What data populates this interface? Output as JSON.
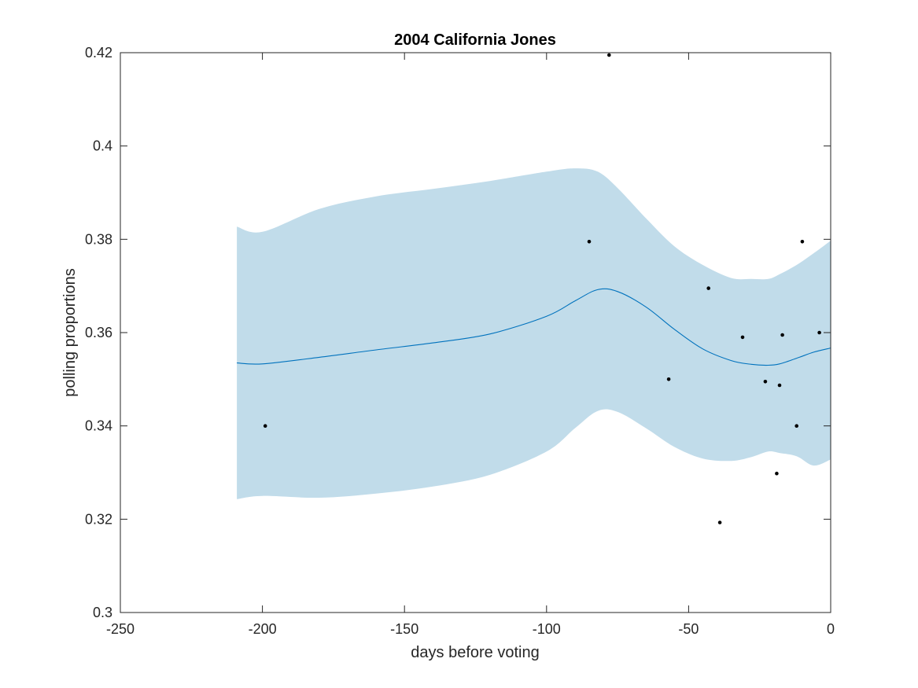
{
  "chart_data": {
    "type": "scatter",
    "title": "2004 California Jones",
    "xlabel": "days before voting",
    "ylabel": "polling proportions",
    "xlim": [
      -250,
      0
    ],
    "ylim": [
      0.3,
      0.42
    ],
    "xticks": [
      -250,
      -200,
      -150,
      -100,
      -50,
      0
    ],
    "yticks": [
      0.3,
      0.32,
      0.34,
      0.36,
      0.38,
      0.4,
      0.42
    ],
    "xtick_labels": [
      "-250",
      "-200",
      "-150",
      "-100",
      "-50",
      "0"
    ],
    "ytick_labels": [
      "0.3",
      "0.32",
      "0.34",
      "0.36",
      "0.38",
      "0.4",
      "0.42"
    ],
    "grid": false,
    "colors": {
      "band": "#c1dcea",
      "mean": "#0072bd",
      "points": "#000000",
      "axes": "#262626"
    },
    "series": [
      {
        "kind": "mean_line",
        "x": [
          -209,
          -200,
          -180,
          -160,
          -140,
          -120,
          -100,
          -90,
          -82,
          -75,
          -65,
          -55,
          -45,
          -35,
          -28,
          -22,
          -18,
          -12,
          -6,
          0
        ],
        "y": [
          0.3535,
          0.3533,
          0.3547,
          0.3563,
          0.3578,
          0.3597,
          0.3635,
          0.3668,
          0.3692,
          0.3688,
          0.3655,
          0.3607,
          0.3565,
          0.354,
          0.3532,
          0.353,
          0.3533,
          0.3545,
          0.3558,
          0.3567
        ]
      },
      {
        "kind": "confidence_band",
        "x": [
          -209,
          -200,
          -180,
          -160,
          -140,
          -120,
          -100,
          -90,
          -82,
          -75,
          -65,
          -55,
          -45,
          -35,
          -28,
          -22,
          -18,
          -12,
          -6,
          0
        ],
        "upper": [
          0.3827,
          0.3816,
          0.3865,
          0.3892,
          0.3908,
          0.3925,
          0.3945,
          0.3952,
          0.3945,
          0.391,
          0.3845,
          0.3785,
          0.3745,
          0.3717,
          0.3715,
          0.3715,
          0.3725,
          0.3745,
          0.377,
          0.3797
        ],
        "lower": [
          0.3243,
          0.325,
          0.3246,
          0.3255,
          0.327,
          0.3295,
          0.3345,
          0.3395,
          0.3432,
          0.343,
          0.3395,
          0.3355,
          0.333,
          0.3325,
          0.3333,
          0.3345,
          0.3342,
          0.3335,
          0.3315,
          0.3328
        ]
      },
      {
        "kind": "points",
        "x": [
          -199,
          -85,
          -78,
          -57,
          -43,
          -39,
          -31,
          -23,
          -19,
          -18,
          -17,
          -12,
          -10,
          -4
        ],
        "y": [
          0.34,
          0.3795,
          0.4195,
          0.35,
          0.3695,
          0.3193,
          0.359,
          0.3495,
          0.3298,
          0.3487,
          0.3595,
          0.34,
          0.3795,
          0.36
        ]
      }
    ]
  }
}
